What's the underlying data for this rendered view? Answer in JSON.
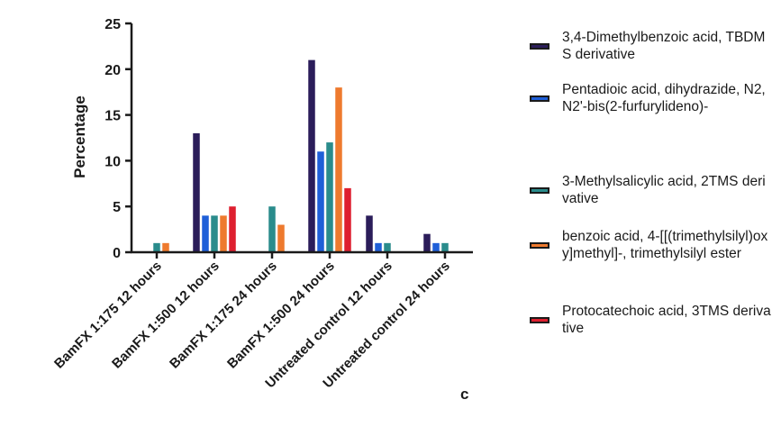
{
  "chart_data": {
    "type": "bar",
    "ylabel": "Percentage",
    "xlabel": "",
    "ylim": [
      0,
      25
    ],
    "yticks": [
      0,
      5,
      10,
      15,
      20,
      25
    ],
    "categories": [
      "BamFX 1:175 12 hours",
      "BamFX 1:500 12 hours",
      "BamFX 1:175 24 hours",
      "BamFX 1:500 24 hours",
      "Untreated control 12 hours",
      "Untreated control 24 hours"
    ],
    "series": [
      {
        "name": "3,4-Dimethylbenzoic acid, TBDMS derivative",
        "color": "#2b1d5a",
        "values": [
          0,
          13,
          0,
          21,
          4,
          2
        ]
      },
      {
        "name": "Pentadioic acid, dihydrazide, N2,N2'-bis(2-furfurylideno)-",
        "color": "#1f5fd8",
        "values": [
          0,
          4,
          0,
          11,
          1,
          1
        ]
      },
      {
        "name": "3-Methylsalicylic acid, 2TMS derivative",
        "color": "#2a8c8c",
        "values": [
          1,
          4,
          5,
          12,
          1,
          1
        ]
      },
      {
        "name": "benzoic acid, 4-[[(trimethylsilyl)oxy]methyl]-, trimethylsilyl ester",
        "color": "#ee7a2e",
        "values": [
          1,
          4,
          3,
          18,
          0,
          0
        ]
      },
      {
        "name": "Protocatechoic acid, 3TMS derivative",
        "color": "#de1f2f",
        "values": [
          0,
          5,
          0,
          7,
          0,
          0
        ]
      }
    ],
    "legend_position": "right",
    "grid": false
  },
  "panel_label": "c"
}
